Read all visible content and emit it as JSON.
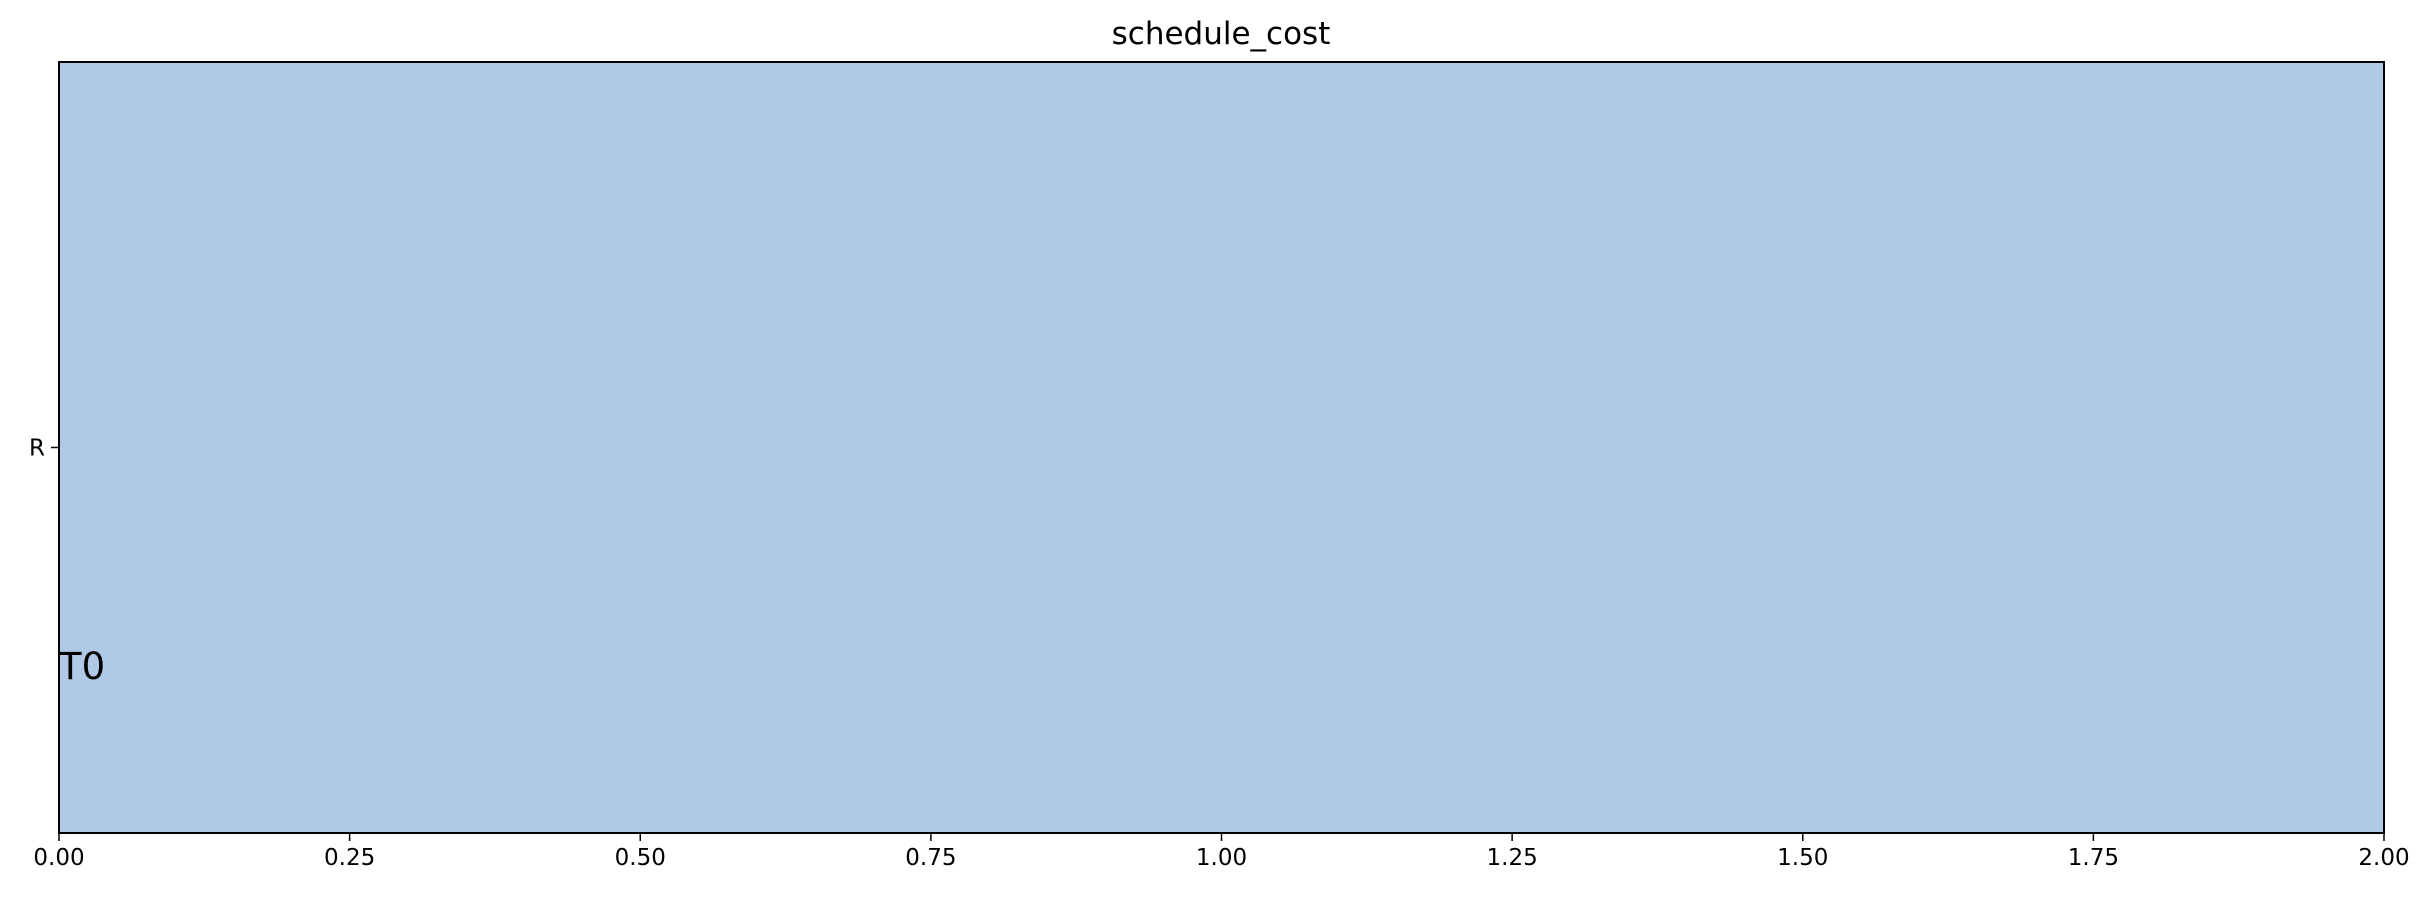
{
  "chart_data": {
    "type": "gantt",
    "title": "schedule_cost",
    "xlabel": "",
    "ylabel": "",
    "xlim": [
      0.0,
      2.0
    ],
    "x_ticks": [
      0.0,
      0.25,
      0.5,
      0.75,
      1.0,
      1.25,
      1.5,
      1.75,
      2.0
    ],
    "x_tick_labels": [
      "0.00",
      "0.25",
      "0.50",
      "0.75",
      "1.00",
      "1.25",
      "1.50",
      "1.75",
      "2.00"
    ],
    "rows": [
      "R"
    ],
    "tasks": [
      {
        "label": "T0",
        "row": "R",
        "start": 0.0,
        "end": 2.0,
        "color": "#b0c9e7"
      }
    ],
    "grid": false,
    "legend": "none"
  }
}
